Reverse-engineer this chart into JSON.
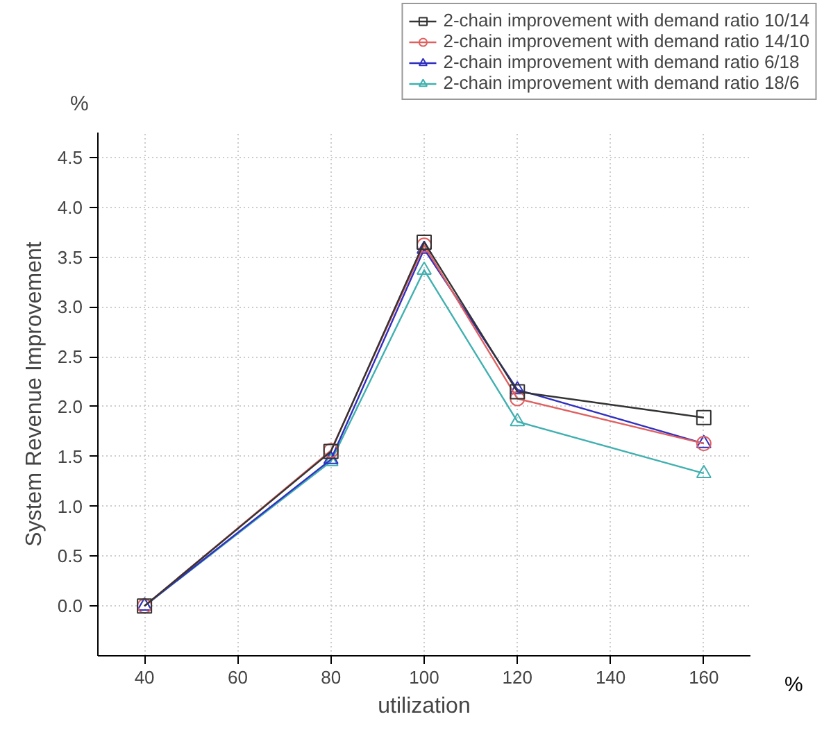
{
  "chart_data": {
    "type": "line",
    "xlabel": "utilization",
    "ylabel": "System Revenue Improvement",
    "annotations": [
      "%",
      "%"
    ],
    "x": [
      40,
      80,
      100,
      120,
      160
    ],
    "series": [
      {
        "name": "2-chain improvement with demand ratio 10/14",
        "color": "#333333",
        "marker": "square",
        "values": [
          0,
          1.55,
          3.65,
          2.15,
          1.89
        ]
      },
      {
        "name": "2-chain improvement with demand ratio 14/10",
        "color": "#e06060",
        "marker": "circle",
        "values": [
          0,
          1.56,
          3.62,
          2.08,
          1.63
        ]
      },
      {
        "name": "2-chain improvement with demand ratio 6/18",
        "color": "#3030c0",
        "marker": "triangle",
        "values": [
          0,
          1.47,
          3.58,
          2.17,
          1.63
        ]
      },
      {
        "name": "2-chain improvement with demand ratio 18/6",
        "color": "#40b0b0",
        "marker": "triangle",
        "values": [
          0,
          1.45,
          3.37,
          1.85,
          1.33
        ]
      }
    ],
    "xlim": [
      30,
      170
    ],
    "ylim": [
      -0.5,
      4.75
    ],
    "xticks": [
      40,
      60,
      80,
      100,
      120,
      140,
      160
    ],
    "yticks": [
      {
        "value": 0,
        "label": "0.0"
      },
      {
        "value": 0.5,
        "label": "0.5"
      },
      {
        "value": 1,
        "label": "1.0"
      },
      {
        "value": 1.5,
        "label": "1.5"
      },
      {
        "value": 2,
        "label": "2.0"
      },
      {
        "value": 2.5,
        "label": "2.5"
      },
      {
        "value": 3,
        "label": "3.0"
      },
      {
        "value": 3.5,
        "label": "3.5"
      },
      {
        "value": 4,
        "label": "4.0"
      },
      {
        "value": 4.5,
        "label": "4.5"
      }
    ],
    "grid": true,
    "legend": "top right",
    "line_style": "solid"
  }
}
